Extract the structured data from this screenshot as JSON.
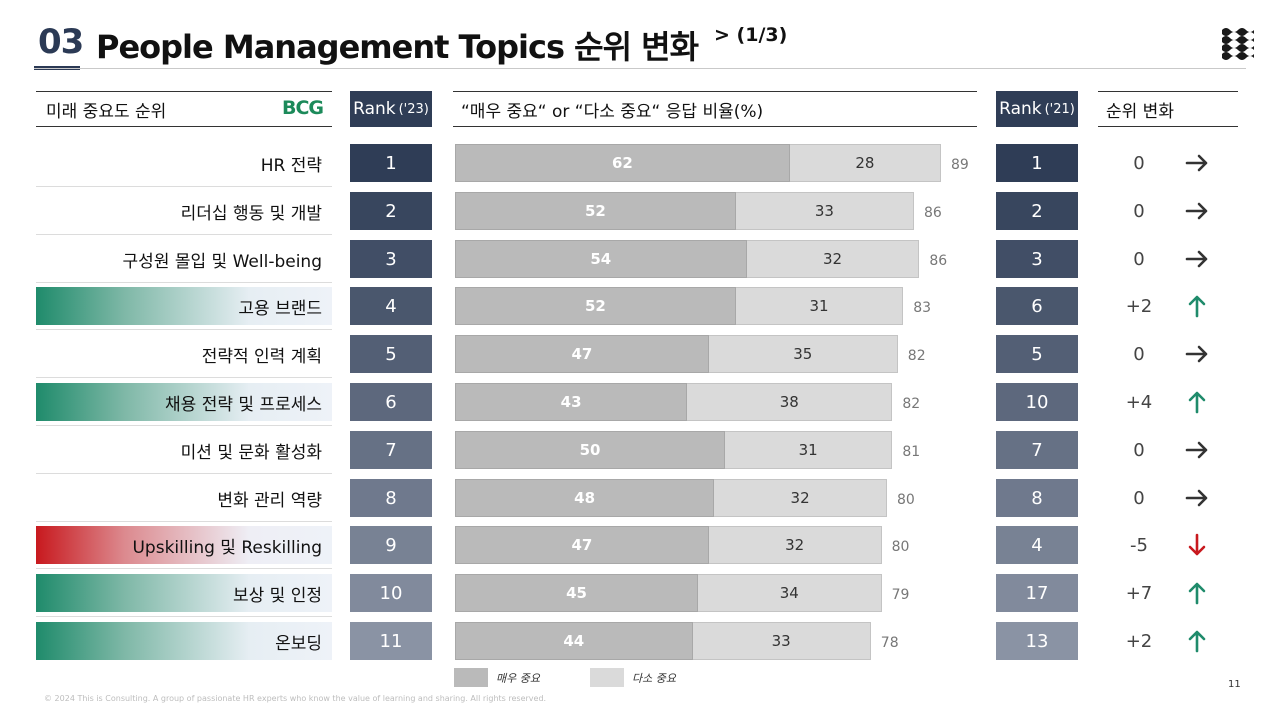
{
  "header": {
    "section_number": "03",
    "title": "People Management Topics 순위 변화",
    "title_suffix": "> (1/3)",
    "logo_icon": "waves-logo-icon"
  },
  "columns": {
    "importance_header": "미래 중요도 순위",
    "bcg_logo": "BCG",
    "rank23_label": "Rank",
    "rank23_year": "('23)",
    "chart_header": "“매우 중요“ or “다소 중요“ 응답 비율(%)",
    "rank21_label": "Rank",
    "rank21_year": "('21)",
    "change_header": "순위 변화"
  },
  "rows": [
    {
      "topic": "HR 전략",
      "highlight": "none",
      "rank23": "1",
      "rank21": "1",
      "change": "0",
      "trend": "flat"
    },
    {
      "topic": "리더십 행동 및 개발",
      "highlight": "none",
      "rank23": "2",
      "rank21": "2",
      "change": "0",
      "trend": "flat"
    },
    {
      "topic": "구성원 몰입 및 Well-being",
      "highlight": "none",
      "rank23": "3",
      "rank21": "3",
      "change": "0",
      "trend": "flat"
    },
    {
      "topic": "고용 브랜드",
      "highlight": "green",
      "rank23": "4",
      "rank21": "6",
      "change": "+2",
      "trend": "up"
    },
    {
      "topic": "전략적 인력 계획",
      "highlight": "none",
      "rank23": "5",
      "rank21": "5",
      "change": "0",
      "trend": "flat"
    },
    {
      "topic": "채용 전략 및 프로세스",
      "highlight": "green",
      "rank23": "6",
      "rank21": "10",
      "change": "+4",
      "trend": "up"
    },
    {
      "topic": "미션 및 문화 활성화",
      "highlight": "none",
      "rank23": "7",
      "rank21": "7",
      "change": "0",
      "trend": "flat"
    },
    {
      "topic": "변화 관리 역량",
      "highlight": "none",
      "rank23": "8",
      "rank21": "8",
      "change": "0",
      "trend": "flat"
    },
    {
      "topic": "Upskilling 및 Reskilling",
      "highlight": "red",
      "rank23": "9",
      "rank21": "4",
      "change": "-5",
      "trend": "down"
    },
    {
      "topic": "보상 및 인정",
      "highlight": "green",
      "rank23": "10",
      "rank21": "17",
      "change": "+7",
      "trend": "up"
    },
    {
      "topic": "온보딩",
      "highlight": "green",
      "rank23": "11",
      "rank21": "13",
      "change": "+2",
      "trend": "up"
    }
  ],
  "chart_data": {
    "type": "bar",
    "stacked": true,
    "orientation": "horizontal",
    "categories": [
      "HR 전략",
      "리더십 행동 및 개발",
      "구성원 몰입 및 Well-being",
      "고용 브랜드",
      "전략적 인력 계획",
      "채용 전략 및 프로세스",
      "미션 및 문화 활성화",
      "변화 관리 역량",
      "Upskilling 및 Reskilling",
      "보상 및 인정",
      "온보딩"
    ],
    "series": [
      {
        "name": "매우 중요",
        "color": "#bababa",
        "values": [
          62,
          52,
          54,
          52,
          47,
          43,
          50,
          48,
          47,
          45,
          44
        ]
      },
      {
        "name": "다소 중요",
        "color": "#dadada",
        "values": [
          28,
          33,
          32,
          31,
          35,
          38,
          31,
          32,
          32,
          34,
          33
        ]
      }
    ],
    "totals": [
      89,
      86,
      86,
      83,
      82,
      82,
      81,
      80,
      80,
      79,
      78
    ],
    "title": "“매우 중요“ or “다소 중요“ 응답 비율(%)",
    "legend_position": "bottom-left"
  },
  "colors": {
    "rank_dark": "#2f3d56",
    "rank_light": "#8a93a4",
    "up_arrow": "#1f8b6b",
    "down_arrow": "#c8191e",
    "flat_arrow": "#333333"
  },
  "footer": {
    "copyright": "© 2024 This is Consulting. A group of passionate HR experts who know the value of learning and sharing. All rights reserved.",
    "page_number": "11"
  }
}
